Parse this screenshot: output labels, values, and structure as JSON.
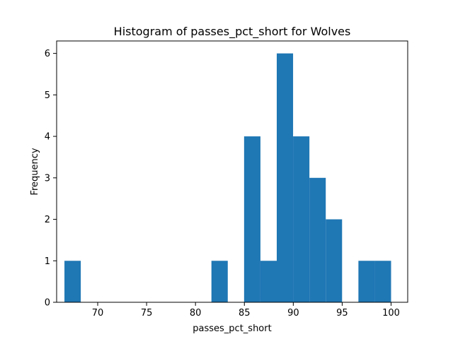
{
  "chart_data": {
    "type": "bar",
    "title": "Histogram of passes_pct_short for Wolves",
    "xlabel": "passes_pct_short",
    "ylabel": "Frequency",
    "bar_color": "#1f77b4",
    "grid": false,
    "legend": "none",
    "xlim": [
      65.8,
      101.7
    ],
    "ylim": [
      0,
      6.3
    ],
    "xticks": [
      70,
      75,
      80,
      85,
      90,
      95,
      100
    ],
    "yticks": [
      0,
      1,
      2,
      3,
      4,
      5,
      6
    ],
    "bins": [
      {
        "start": 66.6,
        "end": 68.27,
        "count": 1
      },
      {
        "start": 68.27,
        "end": 69.94,
        "count": 0
      },
      {
        "start": 69.94,
        "end": 71.61,
        "count": 0
      },
      {
        "start": 71.61,
        "end": 73.28,
        "count": 0
      },
      {
        "start": 73.28,
        "end": 74.95,
        "count": 0
      },
      {
        "start": 74.95,
        "end": 76.62,
        "count": 0
      },
      {
        "start": 76.62,
        "end": 78.29,
        "count": 0
      },
      {
        "start": 78.29,
        "end": 79.96,
        "count": 0
      },
      {
        "start": 79.96,
        "end": 81.63,
        "count": 0
      },
      {
        "start": 81.63,
        "end": 83.3,
        "count": 1
      },
      {
        "start": 83.3,
        "end": 84.97,
        "count": 0
      },
      {
        "start": 84.97,
        "end": 86.64,
        "count": 4
      },
      {
        "start": 86.64,
        "end": 88.31,
        "count": 1
      },
      {
        "start": 88.31,
        "end": 89.98,
        "count": 6
      },
      {
        "start": 89.98,
        "end": 91.65,
        "count": 4
      },
      {
        "start": 91.65,
        "end": 93.32,
        "count": 3
      },
      {
        "start": 93.32,
        "end": 94.99,
        "count": 2
      },
      {
        "start": 94.99,
        "end": 96.66,
        "count": 0
      },
      {
        "start": 96.66,
        "end": 98.33,
        "count": 1
      },
      {
        "start": 98.33,
        "end": 100.0,
        "count": 1
      }
    ]
  }
}
